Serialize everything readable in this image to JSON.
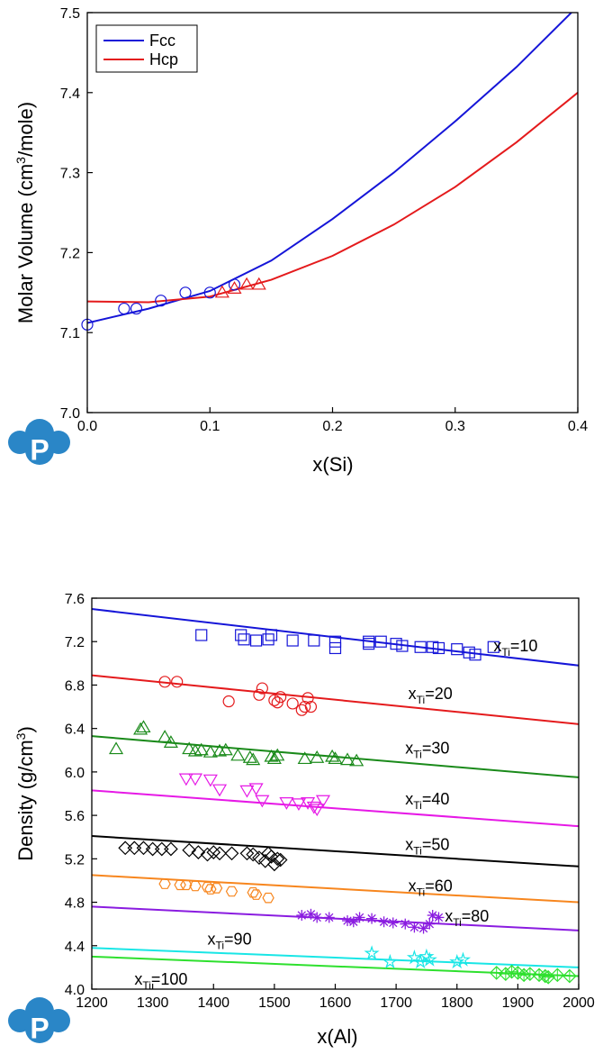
{
  "logo_text": "P",
  "charts": [
    {
      "type": "line",
      "xlabel": "x(Si)",
      "ylabel_main": "Molar Volume (cm",
      "ylabel_sup": "3",
      "ylabel_tail": "/mole)",
      "xlim": [
        0,
        0.4
      ],
      "ylim": [
        7.0,
        7.5
      ],
      "xticks": [
        0,
        0.1,
        0.2,
        0.3,
        0.4
      ],
      "xtick_labels": [
        "0.0",
        "0.1",
        "0.2",
        "0.3",
        "0.4"
      ],
      "yticks": [
        7.0,
        7.1,
        7.2,
        7.3,
        7.4,
        7.5
      ],
      "ytick_labels": [
        "7.0",
        "7.1",
        "7.2",
        "7.3",
        "7.4",
        "7.5"
      ],
      "legend_position": "top-left",
      "series": [
        {
          "name": "Fcc",
          "color": "#1515d8",
          "marker": "circle",
          "curve": {
            "x": [
              0,
              0.05,
              0.1,
              0.15,
              0.2,
              0.25,
              0.3,
              0.35,
              0.4
            ],
            "y": [
              7.112,
              7.13,
              7.152,
              7.19,
              7.242,
              7.3,
              7.364,
              7.432,
              7.508
            ]
          },
          "points": {
            "x": [
              0.0,
              0.03,
              0.04,
              0.06,
              0.08,
              0.1,
              0.12
            ],
            "y": [
              7.11,
              7.13,
              7.13,
              7.14,
              7.15,
              7.15,
              7.16
            ]
          }
        },
        {
          "name": "Hcp",
          "color": "#e41a1c",
          "marker": "triangle",
          "curve": {
            "x": [
              0,
              0.05,
              0.1,
              0.15,
              0.2,
              0.25,
              0.3,
              0.35,
              0.4
            ],
            "y": [
              7.139,
              7.138,
              7.145,
              7.166,
              7.196,
              7.235,
              7.282,
              7.338,
              7.4
            ]
          },
          "points": {
            "x": [
              0.11,
              0.12,
              0.13,
              0.14
            ],
            "y": [
              7.15,
              7.155,
              7.16,
              7.16
            ]
          }
        }
      ]
    },
    {
      "type": "line",
      "xlabel": "x(Al)",
      "ylabel_main": "Density (g/cm",
      "ylabel_sup": "3",
      "ylabel_tail": ")",
      "xlim": [
        1200,
        2000
      ],
      "ylim": [
        4.0,
        7.6
      ],
      "xticks": [
        1200,
        1300,
        1400,
        1500,
        1600,
        1700,
        1800,
        1900,
        2000
      ],
      "xtick_labels": [
        "1200",
        "1300",
        "1400",
        "1500",
        "1600",
        "1700",
        "1800",
        "1900",
        "2000"
      ],
      "yticks": [
        4.0,
        4.4,
        4.8,
        5.2,
        5.6,
        6.0,
        6.4,
        6.8,
        7.2,
        7.6
      ],
      "ytick_labels": [
        "4.0",
        "4.4",
        "4.8",
        "5.2",
        "5.6",
        "6.0",
        "6.4",
        "6.8",
        "7.2",
        "7.6"
      ],
      "series": [
        {
          "label_main": "x",
          "label_sub": "Ti",
          "label_tail": "=10",
          "label_at": [
            1860,
            7.16
          ],
          "color": "#1515d8",
          "marker": "square",
          "line": {
            "x": [
              1200,
              2000
            ],
            "y": [
              7.5,
              6.98
            ]
          },
          "points": {
            "x": [
              1380,
              1445,
              1450,
              1470,
              1490,
              1495,
              1530,
              1565,
              1600,
              1600,
              1655,
              1655,
              1675,
              1700,
              1710,
              1740,
              1760,
              1770,
              1800,
              1820,
              1830,
              1860
            ],
            "y": [
              7.26,
              7.26,
              7.22,
              7.21,
              7.22,
              7.26,
              7.21,
              7.21,
              7.2,
              7.14,
              7.2,
              7.18,
              7.2,
              7.18,
              7.16,
              7.15,
              7.15,
              7.14,
              7.13,
              7.1,
              7.08,
              7.15
            ]
          }
        },
        {
          "label_main": "x",
          "label_sub": "Ti",
          "label_tail": "=20",
          "label_at": [
            1720,
            6.72
          ],
          "color": "#e41a1c",
          "marker": "circle",
          "line": {
            "x": [
              1200,
              2000
            ],
            "y": [
              6.89,
              6.44
            ]
          },
          "points": {
            "x": [
              1320,
              1340,
              1425,
              1475,
              1480,
              1500,
              1505,
              1510,
              1530,
              1545,
              1550,
              1555,
              1560
            ],
            "y": [
              6.83,
              6.83,
              6.65,
              6.71,
              6.77,
              6.66,
              6.64,
              6.69,
              6.63,
              6.57,
              6.6,
              6.68,
              6.6
            ]
          }
        },
        {
          "label_main": "x",
          "label_sub": "Ti",
          "label_tail": "=30",
          "label_at": [
            1715,
            6.22
          ],
          "color": "#1a8a1a",
          "marker": "triangle",
          "line": {
            "x": [
              1200,
              2000
            ],
            "y": [
              6.33,
              5.95
            ]
          },
          "points": {
            "x": [
              1240,
              1280,
              1285,
              1320,
              1330,
              1360,
              1370,
              1380,
              1395,
              1410,
              1420,
              1440,
              1460,
              1465,
              1495,
              1500,
              1505,
              1550,
              1570,
              1595,
              1600,
              1620,
              1635
            ],
            "y": [
              6.21,
              6.39,
              6.41,
              6.32,
              6.27,
              6.21,
              6.19,
              6.2,
              6.18,
              6.19,
              6.2,
              6.15,
              6.13,
              6.11,
              6.14,
              6.12,
              6.15,
              6.12,
              6.13,
              6.14,
              6.12,
              6.11,
              6.1
            ]
          }
        },
        {
          "label_main": "x",
          "label_sub": "Ti",
          "label_tail": "=40",
          "label_at": [
            1715,
            5.75
          ],
          "color": "#e619e6",
          "marker": "triangle-down",
          "line": {
            "x": [
              1200,
              2000
            ],
            "y": [
              5.83,
              5.5
            ]
          },
          "points": {
            "x": [
              1355,
              1370,
              1395,
              1410,
              1455,
              1470,
              1480,
              1520,
              1540,
              1555,
              1565,
              1570,
              1580
            ],
            "y": [
              5.94,
              5.94,
              5.93,
              5.84,
              5.83,
              5.85,
              5.74,
              5.72,
              5.71,
              5.72,
              5.68,
              5.66,
              5.74
            ]
          }
        },
        {
          "label_main": "x",
          "label_sub": "Ti",
          "label_tail": "=50",
          "label_at": [
            1715,
            5.33
          ],
          "color": "#000000",
          "marker": "diamond",
          "line": {
            "x": [
              1200,
              2000
            ],
            "y": [
              5.41,
              5.13
            ]
          },
          "points": {
            "x": [
              1255,
              1270,
              1285,
              1300,
              1315,
              1330,
              1360,
              1375,
              1390,
              1400,
              1410,
              1430,
              1455,
              1465,
              1475,
              1485,
              1490,
              1495,
              1500,
              1505,
              1510
            ],
            "y": [
              5.3,
              5.3,
              5.3,
              5.29,
              5.29,
              5.29,
              5.28,
              5.26,
              5.24,
              5.26,
              5.25,
              5.25,
              5.25,
              5.24,
              5.21,
              5.18,
              5.25,
              5.22,
              5.15,
              5.2,
              5.19
            ]
          }
        },
        {
          "label_main": "x",
          "label_sub": "Ti",
          "label_tail": "=60",
          "label_at": [
            1720,
            4.95
          ],
          "color": "#f7861e",
          "marker": "hexagon",
          "line": {
            "x": [
              1200,
              2000
            ],
            "y": [
              5.05,
              4.8
            ]
          },
          "points": {
            "x": [
              1320,
              1345,
              1355,
              1370,
              1390,
              1395,
              1405,
              1430,
              1465,
              1470,
              1490
            ],
            "y": [
              4.97,
              4.96,
              4.96,
              4.95,
              4.94,
              4.92,
              4.93,
              4.9,
              4.89,
              4.87,
              4.84
            ]
          }
        },
        {
          "label_main": "x",
          "label_sub": "Ti",
          "label_tail": "=80",
          "label_at": [
            1780,
            4.67
          ],
          "color": "#8a1ce0",
          "marker": "star",
          "line": {
            "x": [
              1200,
              2000
            ],
            "y": [
              4.76,
              4.54
            ]
          },
          "points": {
            "x": [
              1545,
              1560,
              1570,
              1590,
              1620,
              1630,
              1640,
              1660,
              1680,
              1695,
              1715,
              1730,
              1745,
              1755,
              1760,
              1770
            ],
            "y": [
              4.68,
              4.69,
              4.66,
              4.66,
              4.63,
              4.62,
              4.66,
              4.65,
              4.62,
              4.61,
              4.6,
              4.57,
              4.56,
              4.6,
              4.68,
              4.66
            ]
          }
        },
        {
          "label_main": "x",
          "label_sub": "Ti",
          "label_tail": "=90",
          "label_at": [
            1390,
            4.46
          ],
          "color": "#19e6e6",
          "marker": "star5",
          "line": {
            "x": [
              1200,
              2000
            ],
            "y": [
              4.38,
              4.2
            ]
          },
          "points": {
            "x": [
              1660,
              1690,
              1730,
              1740,
              1750,
              1755,
              1800,
              1810
            ],
            "y": [
              4.33,
              4.25,
              4.29,
              4.25,
              4.3,
              4.27,
              4.25,
              4.27
            ]
          }
        },
        {
          "label_main": "x",
          "label_sub": "Ti",
          "label_tail": "=100",
          "label_at": [
            1270,
            4.09
          ],
          "color": "#2ee02e",
          "marker": "diamond-plus",
          "line": {
            "x": [
              1200,
              2000
            ],
            "y": [
              4.3,
              4.12
            ]
          },
          "points": {
            "x": [
              1865,
              1880,
              1890,
              1900,
              1910,
              1920,
              1935,
              1945,
              1950,
              1965,
              1985
            ],
            "y": [
              4.15,
              4.14,
              4.16,
              4.15,
              4.13,
              4.14,
              4.13,
              4.12,
              4.11,
              4.13,
              4.12
            ]
          }
        }
      ]
    }
  ]
}
